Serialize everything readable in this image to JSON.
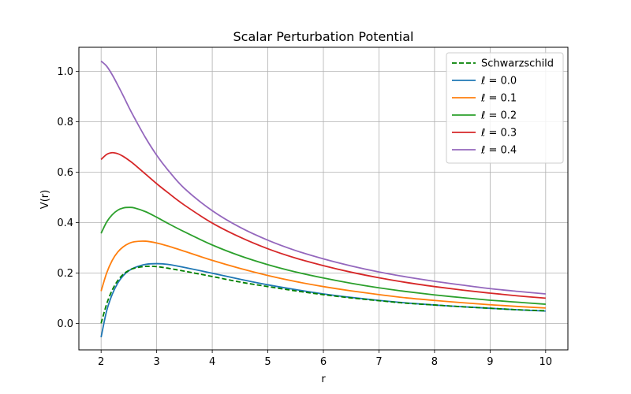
{
  "chart_data": {
    "type": "line",
    "title": "Scalar Perturbation Potential",
    "xlabel": "r",
    "ylabel": "V(r)",
    "xlim": [
      1.6,
      10.4
    ],
    "ylim": [
      -0.105,
      1.095
    ],
    "xticks": [
      2,
      3,
      4,
      5,
      6,
      7,
      8,
      9,
      10
    ],
    "yticks": [
      0.0,
      0.2,
      0.4,
      0.6,
      0.8,
      1.0
    ],
    "xtick_labels": [
      "2",
      "3",
      "4",
      "5",
      "6",
      "7",
      "8",
      "9",
      "10"
    ],
    "ytick_labels": [
      "0.0",
      "0.2",
      "0.4",
      "0.6",
      "0.8",
      "1.0"
    ],
    "grid": true,
    "legend_position": "top-right",
    "x": [
      2,
      2.1,
      2.2,
      2.3,
      2.4,
      2.5,
      2.6,
      2.8,
      3.0,
      3.2,
      3.5,
      4.0,
      4.5,
      5.0,
      5.5,
      6.0,
      6.5,
      7.0,
      7.5,
      8.0,
      8.5,
      9.0,
      9.5,
      10.0
    ],
    "series": [
      {
        "name": "Schwarzschild",
        "color": "#008000",
        "dash": true,
        "values": [
          0.0,
          0.077,
          0.132,
          0.17,
          0.195,
          0.21,
          0.219,
          0.226,
          0.225,
          0.219,
          0.207,
          0.186,
          0.164,
          0.146,
          0.129,
          0.114,
          0.101,
          0.09,
          0.08,
          0.073,
          0.066,
          0.06,
          0.054,
          0.05
        ]
      },
      {
        "name": "ℓ = 0.0",
        "color": "#1f77b4",
        "dash": false,
        "values": [
          -0.055,
          0.05,
          0.115,
          0.16,
          0.19,
          0.209,
          0.221,
          0.234,
          0.237,
          0.234,
          0.222,
          0.199,
          0.175,
          0.153,
          0.134,
          0.117,
          0.103,
          0.091,
          0.081,
          0.073,
          0.066,
          0.06,
          0.054,
          0.049
        ]
      },
      {
        "name": "ℓ = 0.1",
        "color": "#ff7f0e",
        "dash": false,
        "values": [
          0.128,
          0.2,
          0.25,
          0.283,
          0.304,
          0.317,
          0.324,
          0.326,
          0.319,
          0.307,
          0.286,
          0.25,
          0.218,
          0.19,
          0.166,
          0.146,
          0.129,
          0.114,
          0.101,
          0.091,
          0.082,
          0.074,
          0.067,
          0.061
        ]
      },
      {
        "name": "ℓ = 0.2",
        "color": "#2ca02c",
        "dash": false,
        "values": [
          0.357,
          0.402,
          0.431,
          0.449,
          0.458,
          0.46,
          0.458,
          0.443,
          0.421,
          0.397,
          0.363,
          0.311,
          0.268,
          0.233,
          0.204,
          0.18,
          0.159,
          0.141,
          0.126,
          0.113,
          0.102,
          0.092,
          0.084,
          0.076
        ]
      },
      {
        "name": "ℓ = 0.3",
        "color": "#d62728",
        "dash": false,
        "values": [
          0.65,
          0.67,
          0.677,
          0.673,
          0.662,
          0.647,
          0.63,
          0.592,
          0.554,
          0.519,
          0.469,
          0.398,
          0.342,
          0.296,
          0.259,
          0.229,
          0.203,
          0.181,
          0.162,
          0.146,
          0.132,
          0.12,
          0.109,
          0.1
        ]
      },
      {
        "name": "ℓ = 0.4",
        "color": "#9467bd",
        "dash": false,
        "values": [
          1.04,
          1.02,
          0.986,
          0.945,
          0.902,
          0.857,
          0.815,
          0.736,
          0.667,
          0.609,
          0.535,
          0.447,
          0.381,
          0.33,
          0.289,
          0.256,
          0.228,
          0.204,
          0.184,
          0.167,
          0.152,
          0.138,
          0.127,
          0.117
        ]
      }
    ]
  }
}
